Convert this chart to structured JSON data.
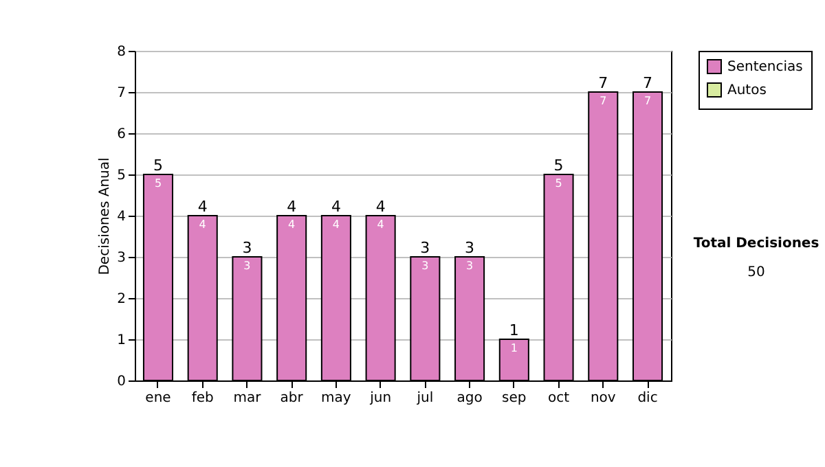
{
  "chart_data": {
    "type": "bar",
    "ylabel": "Decisiones Anual",
    "categories": [
      "ene",
      "feb",
      "mar",
      "abr",
      "may",
      "jun",
      "jul",
      "ago",
      "sep",
      "oct",
      "nov",
      "dic"
    ],
    "stacked": true,
    "series": [
      {
        "name": "Sentencias",
        "color": "#dd80c0",
        "values": [
          5,
          4,
          3,
          4,
          4,
          4,
          3,
          3,
          1,
          5,
          7,
          7
        ]
      },
      {
        "name": "Autos",
        "color": "#d8eca0",
        "values": [
          null,
          null,
          null,
          null,
          null,
          null,
          null,
          null,
          null,
          null,
          null,
          null
        ]
      }
    ],
    "data_labels": true,
    "totals": [
      "5",
      "4",
      "3",
      "4",
      "4",
      "4",
      "3",
      "3",
      "1",
      "5",
      "7",
      "7"
    ],
    "ylim": [
      0,
      8
    ],
    "yticks": [
      0,
      1,
      2,
      3,
      4,
      5,
      6,
      7,
      8
    ],
    "grid": "y",
    "legend": "right",
    "annotations": [
      "Total Decisiones",
      "50"
    ]
  }
}
